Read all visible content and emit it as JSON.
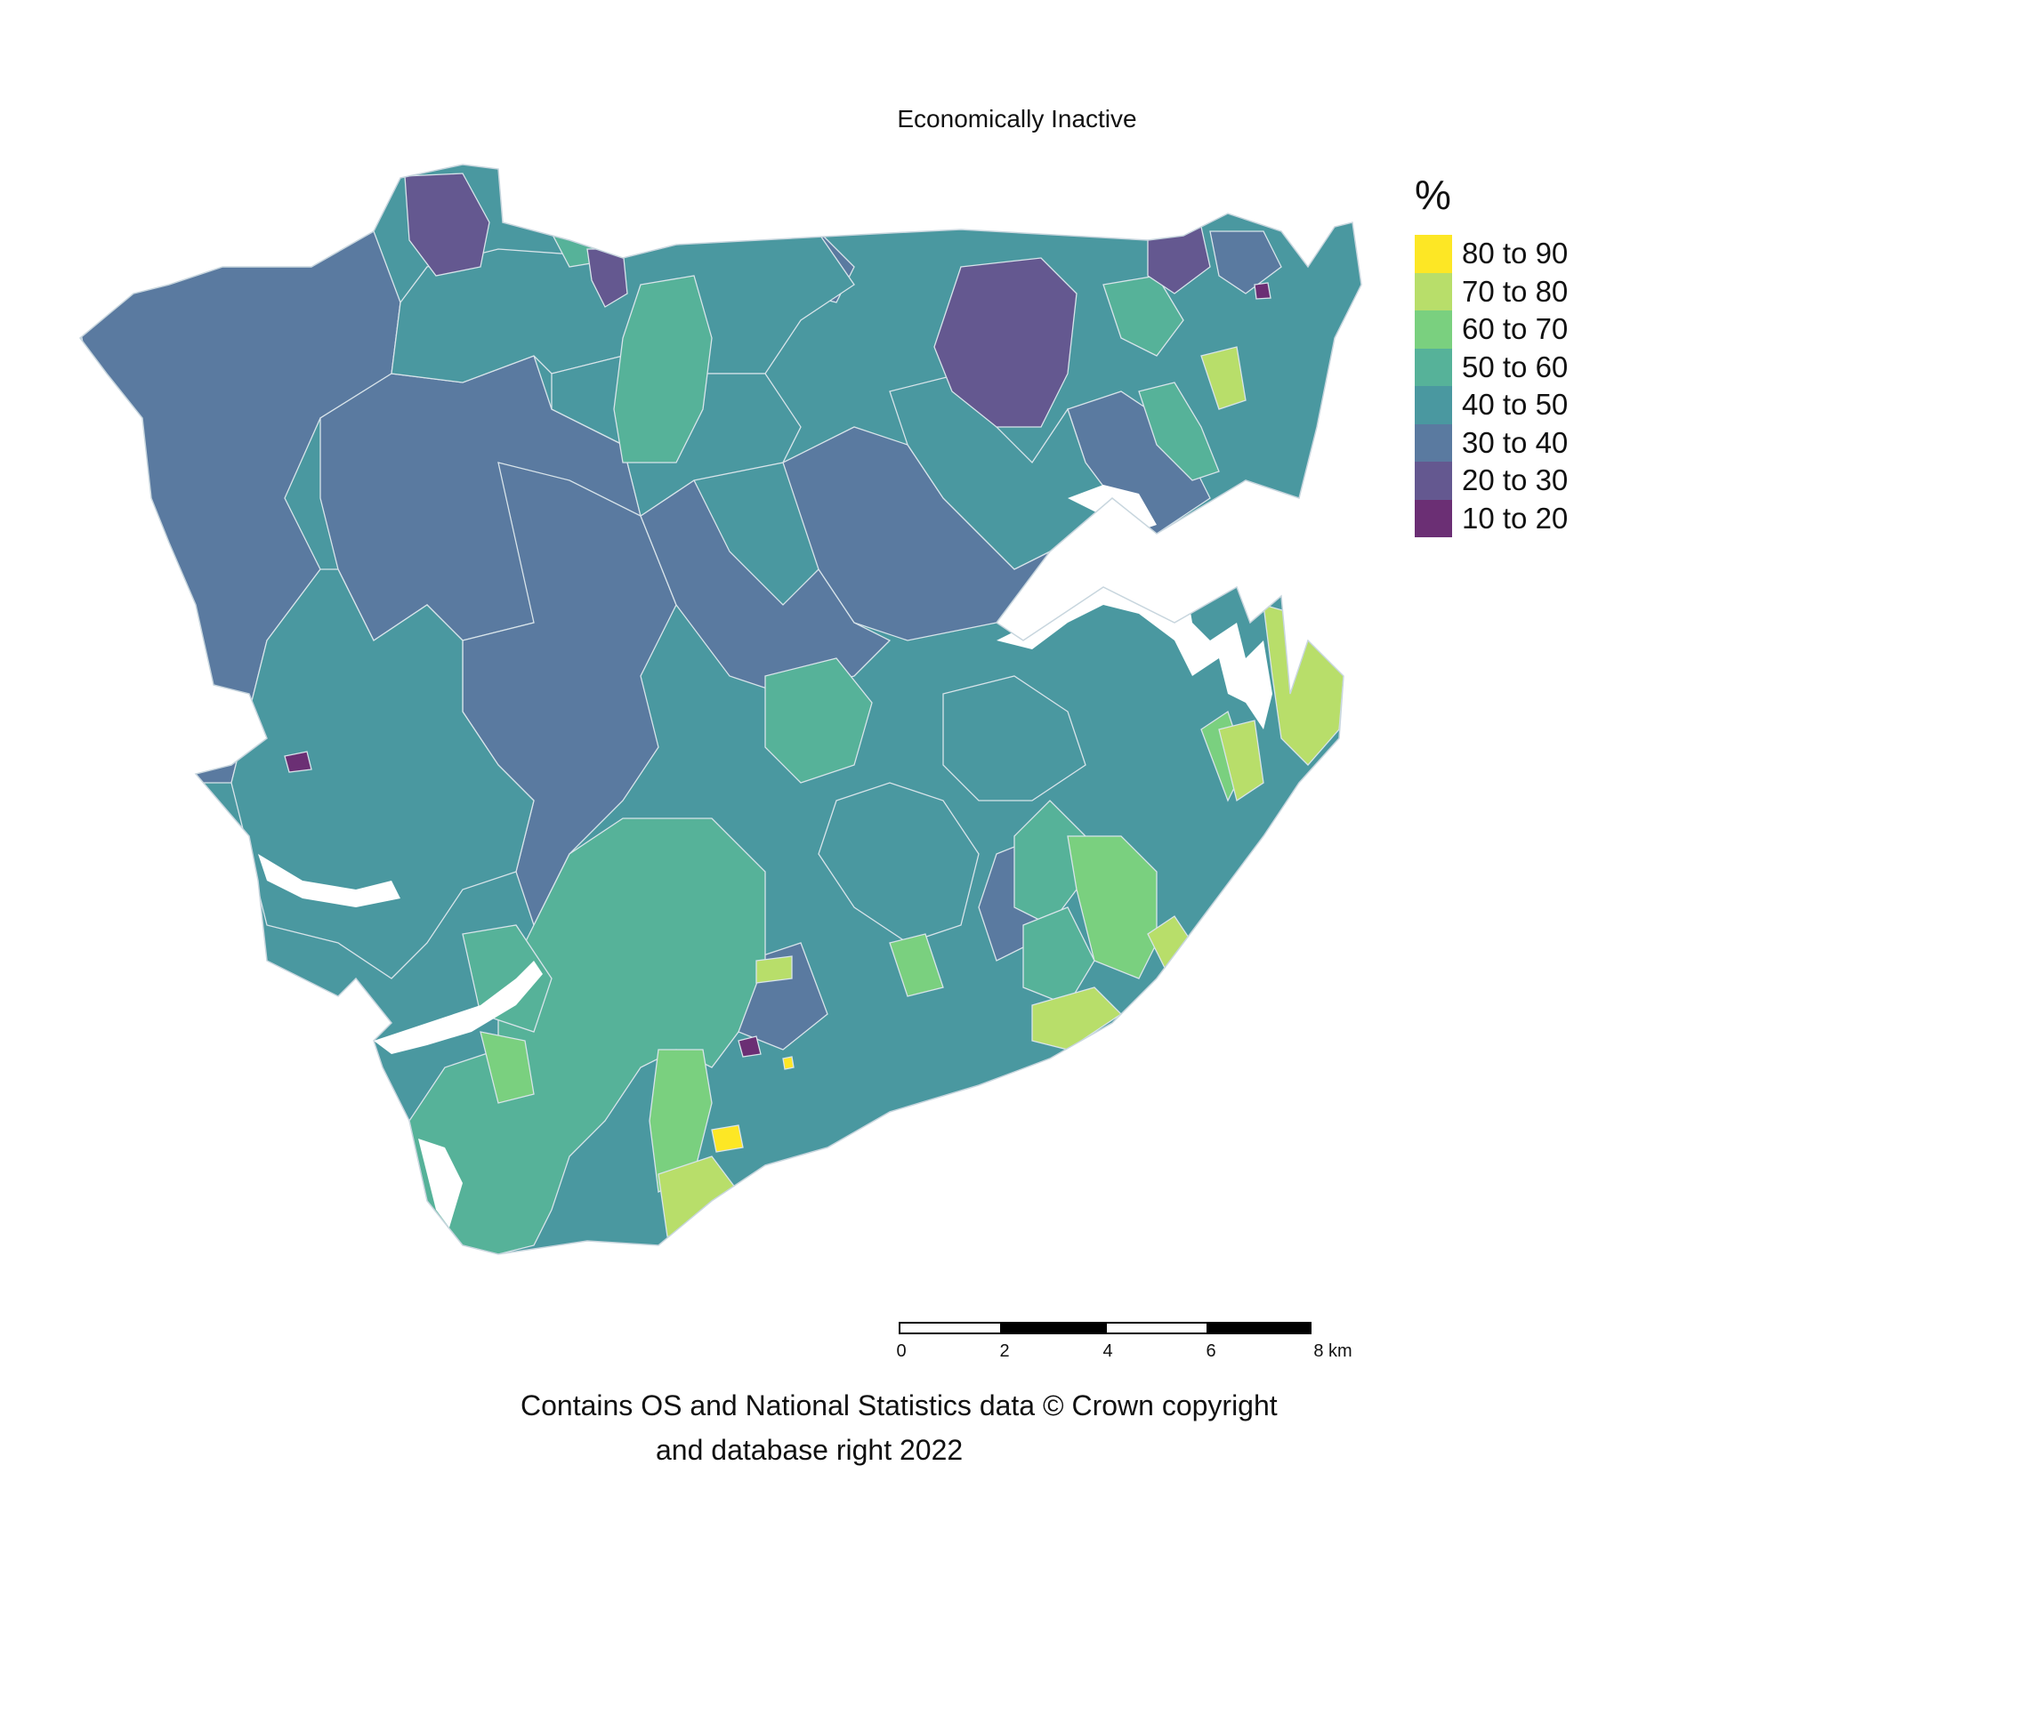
{
  "map": {
    "title": "Economically Inactive",
    "legend": {
      "title": "%",
      "classes": [
        {
          "label": "80 to 90",
          "color": "#FDE725"
        },
        {
          "label": "70 to 80",
          "color": "#B8DE6A"
        },
        {
          "label": "60 to 70",
          "color": "#7AD07F"
        },
        {
          "label": "50 to 60",
          "color": "#56B299"
        },
        {
          "label": "40 to 50",
          "color": "#4A98A0"
        },
        {
          "label": "30 to 40",
          "color": "#5A7AA0"
        },
        {
          "label": "20 to 30",
          "color": "#645890"
        },
        {
          "label": "10 to 20",
          "color": "#6B2F74"
        }
      ]
    },
    "scale_bar": {
      "ticks": [
        "0",
        "2",
        "4",
        "6",
        "8 km"
      ]
    },
    "credit": {
      "line1": "Contains OS and National Statistics data © Crown copyright",
      "line2": "and database right 2022"
    }
  }
}
